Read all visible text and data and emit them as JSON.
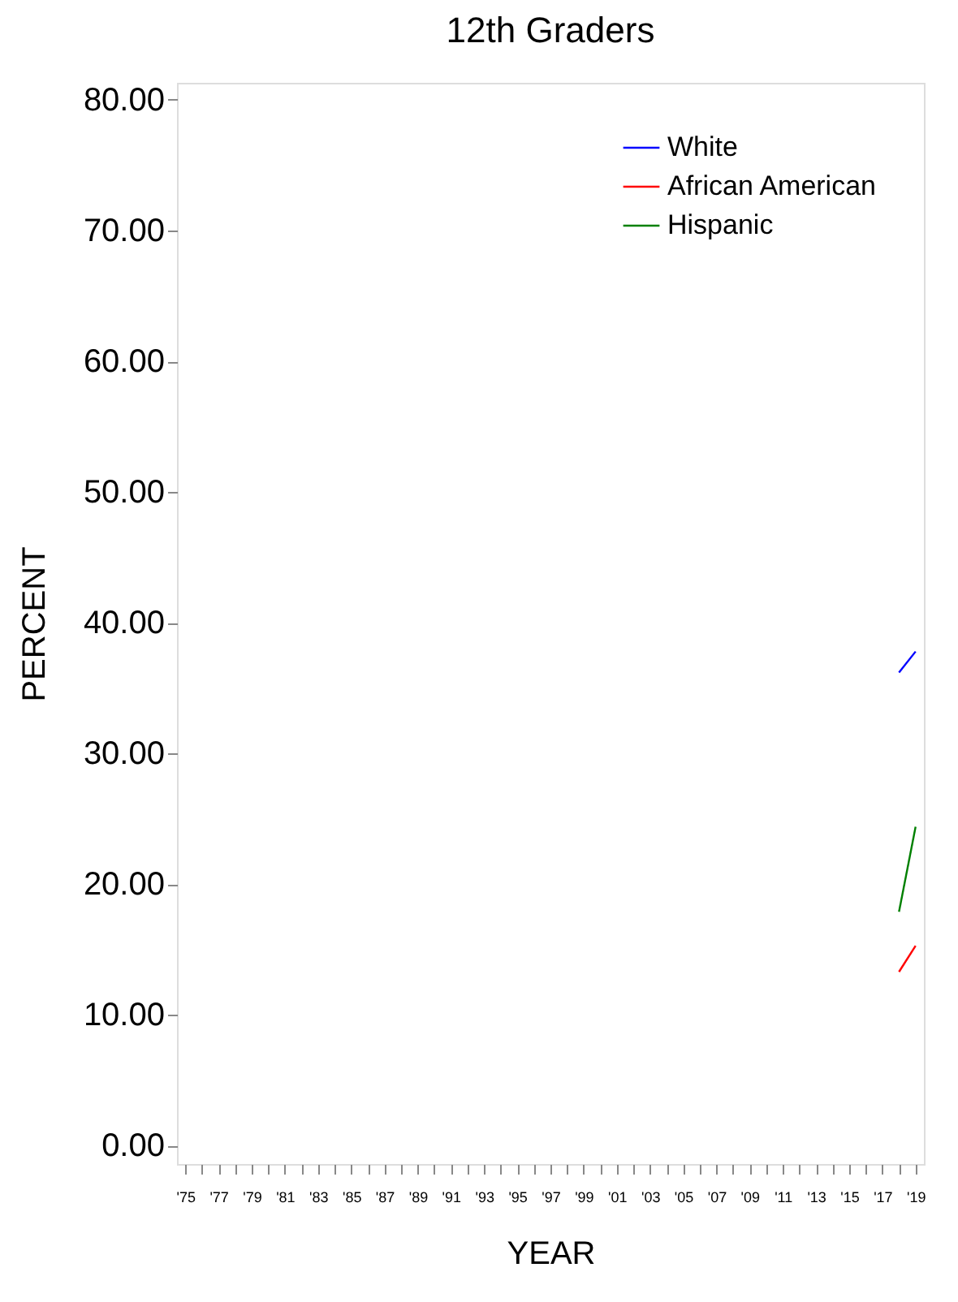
{
  "chart_data": {
    "type": "line",
    "title": "12th Graders",
    "xlabel": "YEAR",
    "ylabel": "PERCENT",
    "x": [
      2018,
      2019
    ],
    "series": [
      {
        "name": "White",
        "color": "#0000ff",
        "values": [
          36.2,
          37.8
        ]
      },
      {
        "name": "African American",
        "color": "#ff0000",
        "values": [
          13.3,
          15.3
        ]
      },
      {
        "name": "Hispanic",
        "color": "#008000",
        "values": [
          17.9,
          24.4
        ]
      }
    ],
    "xlim": [
      1974.5,
      2019.5
    ],
    "xticks": [
      {
        "value": 1975,
        "label": "'75"
      },
      {
        "value": 1976,
        "label": null
      },
      {
        "value": 1977,
        "label": "'77"
      },
      {
        "value": 1978,
        "label": null
      },
      {
        "value": 1979,
        "label": "'79"
      },
      {
        "value": 1980,
        "label": null
      },
      {
        "value": 1981,
        "label": "'81"
      },
      {
        "value": 1982,
        "label": null
      },
      {
        "value": 1983,
        "label": "'83"
      },
      {
        "value": 1984,
        "label": null
      },
      {
        "value": 1985,
        "label": "'85"
      },
      {
        "value": 1986,
        "label": null
      },
      {
        "value": 1987,
        "label": "'87"
      },
      {
        "value": 1988,
        "label": null
      },
      {
        "value": 1989,
        "label": "'89"
      },
      {
        "value": 1990,
        "label": null
      },
      {
        "value": 1991,
        "label": "'91"
      },
      {
        "value": 1992,
        "label": null
      },
      {
        "value": 1993,
        "label": "'93"
      },
      {
        "value": 1994,
        "label": null
      },
      {
        "value": 1995,
        "label": "'95"
      },
      {
        "value": 1996,
        "label": null
      },
      {
        "value": 1997,
        "label": "'97"
      },
      {
        "value": 1998,
        "label": null
      },
      {
        "value": 1999,
        "label": "'99"
      },
      {
        "value": 2000,
        "label": null
      },
      {
        "value": 2001,
        "label": "'01"
      },
      {
        "value": 2002,
        "label": null
      },
      {
        "value": 2003,
        "label": "'03"
      },
      {
        "value": 2004,
        "label": null
      },
      {
        "value": 2005,
        "label": "'05"
      },
      {
        "value": 2006,
        "label": null
      },
      {
        "value": 2007,
        "label": "'07"
      },
      {
        "value": 2008,
        "label": null
      },
      {
        "value": 2009,
        "label": "'09"
      },
      {
        "value": 2010,
        "label": null
      },
      {
        "value": 2011,
        "label": "'11"
      },
      {
        "value": 2012,
        "label": null
      },
      {
        "value": 2013,
        "label": "'13"
      },
      {
        "value": 2014,
        "label": null
      },
      {
        "value": 2015,
        "label": "'15"
      },
      {
        "value": 2016,
        "label": null
      },
      {
        "value": 2017,
        "label": "'17"
      },
      {
        "value": 2018,
        "label": null
      },
      {
        "value": 2019,
        "label": "'19"
      }
    ],
    "ylim": [
      -1.4,
      81.3
    ],
    "yticks": [
      {
        "value": 0,
        "label": "0.00"
      },
      {
        "value": 10,
        "label": "10.00"
      },
      {
        "value": 20,
        "label": "20.00"
      },
      {
        "value": 30,
        "label": "30.00"
      },
      {
        "value": 40,
        "label": "40.00"
      },
      {
        "value": 50,
        "label": "50.00"
      },
      {
        "value": 60,
        "label": "60.00"
      },
      {
        "value": 70,
        "label": "70.00"
      },
      {
        "value": 80,
        "label": "80.00"
      }
    ],
    "grid": false,
    "legend": "top right",
    "marker": "none",
    "line_style": "solid"
  }
}
